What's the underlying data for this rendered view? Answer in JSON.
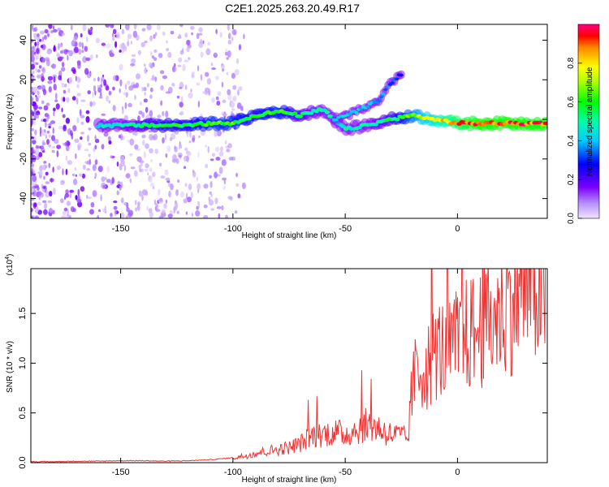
{
  "figure": {
    "title": "C2E1.2025.263.20.49.R17"
  },
  "chart_data": [
    {
      "type": "heatmap",
      "title": "C2E1.2025.263.20.49.R17",
      "xlabel": "Height of straight line (km)",
      "ylabel": "Frequency (Hz)",
      "xlim": [
        -190,
        40
      ],
      "ylim": [
        -50,
        48
      ],
      "x_ticks": [
        -150,
        -100,
        -50,
        0
      ],
      "y_ticks": [
        -40,
        -20,
        0,
        20,
        40
      ],
      "colorbar": {
        "label": "Normalized spectral amplitude",
        "range": [
          0,
          1
        ],
        "ticks": [
          0.0,
          0.2,
          0.4,
          0.6,
          0.8
        ],
        "colormap": [
          "#e9d9ff",
          "#7b00ff",
          "#0000ff",
          "#00ffff",
          "#00ff00",
          "#ffff00",
          "#ff0000",
          "#ff0080"
        ]
      },
      "ridge": [
        {
          "x": -160,
          "y": -3,
          "amp": 0.45
        },
        {
          "x": -150,
          "y": -3,
          "amp": 0.5
        },
        {
          "x": -140,
          "y": -3,
          "amp": 0.55
        },
        {
          "x": -130,
          "y": -3,
          "amp": 0.6
        },
        {
          "x": -120,
          "y": -3,
          "amp": 0.6
        },
        {
          "x": -110,
          "y": -2,
          "amp": 0.65
        },
        {
          "x": -100,
          "y": -2,
          "amp": 0.65
        },
        {
          "x": -90,
          "y": 2,
          "amp": 0.6
        },
        {
          "x": -80,
          "y": 4,
          "amp": 0.65
        },
        {
          "x": -70,
          "y": 2,
          "amp": 0.55
        },
        {
          "x": -60,
          "y": 5,
          "amp": 0.5
        },
        {
          "x": -50,
          "y": -5,
          "amp": 0.5
        },
        {
          "x": -40,
          "y": -3,
          "amp": 0.5
        },
        {
          "x": -30,
          "y": 0,
          "amp": 0.55
        },
        {
          "x": -20,
          "y": 2,
          "amp": 0.7
        },
        {
          "x": -10,
          "y": 0,
          "amp": 0.8
        },
        {
          "x": 0,
          "y": -2,
          "amp": 0.9
        },
        {
          "x": 10,
          "y": -2,
          "amp": 0.95
        },
        {
          "x": 20,
          "y": -2,
          "amp": 0.95
        },
        {
          "x": 30,
          "y": -2,
          "amp": 0.95
        },
        {
          "x": 40,
          "y": -2,
          "amp": 0.95
        }
      ],
      "branch": [
        {
          "x": -55,
          "y": 0,
          "amp": 0.45
        },
        {
          "x": -45,
          "y": 4,
          "amp": 0.45
        },
        {
          "x": -35,
          "y": 10,
          "amp": 0.4
        },
        {
          "x": -30,
          "y": 18,
          "amp": 0.35
        },
        {
          "x": -25,
          "y": 23,
          "amp": 0.3
        }
      ]
    },
    {
      "type": "line",
      "xlabel": "Height of straight line (km)",
      "ylabel": "SNR (10 * v/v)",
      "y_multiplier": "(x10",
      "y_multiplier_exp": "4",
      "y_multiplier_close": ")",
      "xlim": [
        -190,
        40
      ],
      "ylim": [
        0,
        1.95
      ],
      "x_ticks": [
        -150,
        -100,
        -50,
        0
      ],
      "y_ticks": [
        0.0,
        0.5,
        1.0,
        1.5
      ],
      "y_tick_labels": [
        "0.0",
        "0.5",
        "1.0",
        "1.5"
      ],
      "color": "#ee3333",
      "x": [
        -190,
        -180,
        -170,
        -160,
        -150,
        -140,
        -130,
        -120,
        -110,
        -100,
        -95,
        -90,
        -85,
        -80,
        -75,
        -70,
        -65,
        -60,
        -55,
        -50,
        -45,
        -40,
        -35,
        -30,
        -25,
        -22,
        -20,
        -18,
        -15,
        -12,
        -10,
        -5,
        0,
        5,
        10,
        15,
        20,
        25,
        30,
        35,
        40
      ],
      "y": [
        0.01,
        0.01,
        0.015,
        0.015,
        0.02,
        0.02,
        0.015,
        0.02,
        0.03,
        0.05,
        0.07,
        0.1,
        0.12,
        0.14,
        0.16,
        0.2,
        0.28,
        0.3,
        0.32,
        0.3,
        0.35,
        0.4,
        0.36,
        0.3,
        0.28,
        0.25,
        0.85,
        0.95,
        1.0,
        1.05,
        1.2,
        1.18,
        1.25,
        1.35,
        1.4,
        1.5,
        1.6,
        1.75,
        1.85,
        1.84,
        1.8
      ]
    }
  ]
}
